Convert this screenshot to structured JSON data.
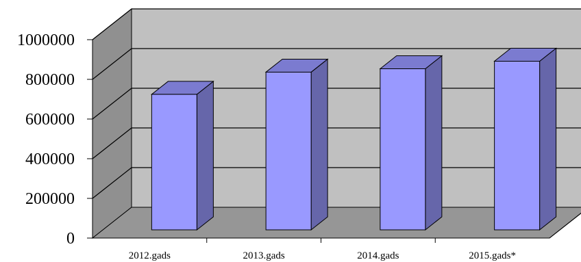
{
  "chart_data": {
    "type": "bar",
    "title": "",
    "xlabel": "",
    "ylabel": "",
    "categories": [
      "2012.gads",
      "2013.gads",
      "2014.gads",
      "2015.gads*"
    ],
    "values": [
      683000,
      795000,
      812000,
      850000
    ],
    "ylim": [
      0,
      1000000
    ],
    "yticks": [
      "0",
      "200000",
      "400000",
      "600000",
      "800000",
      "1000000"
    ],
    "grid": true,
    "legend": "none",
    "colors": {
      "bar_front": "#9999ff",
      "bar_side": "#6666aa",
      "bar_top": "#7b7bd0",
      "back_wall": "#c0c0c0",
      "side_wall": "#909090",
      "floor": "#969696",
      "grid": "#000000"
    }
  }
}
